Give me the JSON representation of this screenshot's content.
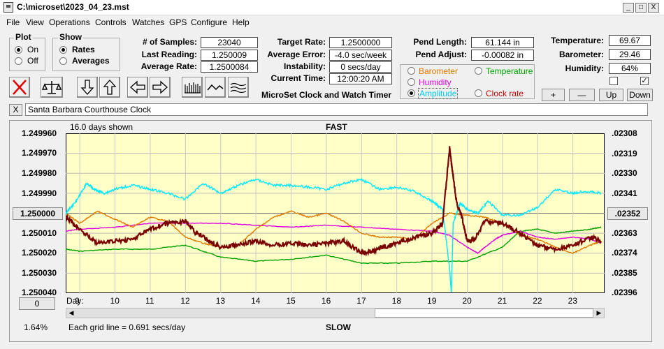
{
  "titlebar": {
    "title": "C:\\microset\\2023_04_23.mst",
    "minimize": "_",
    "maximize": "□",
    "close": "X"
  },
  "menu": [
    "File",
    "View",
    "Operations",
    "Controls",
    "Watches",
    "GPS",
    "Configure",
    "Help"
  ],
  "plot_group": {
    "title": "Plot",
    "on": "On",
    "off": "Off",
    "selected": "On"
  },
  "show_group": {
    "title": "Show",
    "rates": "Rates",
    "averages": "Averages",
    "selected": "Rates"
  },
  "stats": {
    "samples_label": "# of Samples:",
    "samples": "23040",
    "last_reading_label": "Last Reading:",
    "last_reading": "1.250009",
    "average_rate_label": "Average Rate:",
    "average_rate": "1.2500084",
    "target_rate_label": "Target Rate:",
    "target_rate": "1.2500000",
    "average_error_label": "Average Error:",
    "average_error": "-4.0 sec/week",
    "instability_label": "Instability:",
    "instability": "0 secs/day",
    "current_time_label": "Current Time:",
    "current_time": "12:00:20 AM",
    "pend_length_label": "Pend Length:",
    "pend_length": "61.144 in",
    "pend_adjust_label": "Pend Adjust:",
    "pend_adjust": "-0.00082 in",
    "temperature_label": "Temperature:",
    "temperature": "69.67",
    "barometer_label": "Barometer:",
    "barometer": "29.46",
    "humidity_label": "Humidity:",
    "humidity": "64%"
  },
  "app_caption": "MicroSet Clock and Watch Timer",
  "overlay_options": {
    "barometer": "Barometer",
    "temperature": "Temperature",
    "humidity": "Humidity",
    "amplitude": "Amplitude",
    "clock_rate": "Clock rate",
    "selected": "Amplitude",
    "colors": {
      "barometer": "#e07800",
      "temperature": "#00a000",
      "humidity": "#e000e0",
      "amplitude": "#00e8ff",
      "clock_rate": "#7a0000"
    }
  },
  "scale_buttons": {
    "plus": "+",
    "minus": "—",
    "up": "Up",
    "down": "Down"
  },
  "checkboxes": {
    "left_checked": false,
    "right_checked": true,
    "right_mark": "✓"
  },
  "clock_name": {
    "clear": "X",
    "value": "Santa Barbara Courthouse Clock"
  },
  "plot": {
    "days_shown": "16.0 days shown",
    "fast_label": "FAST",
    "slow_label": "SLOW",
    "center_button": "1.250000",
    "right_center_button": ".02352",
    "zero_button": "0",
    "percent": "1.64%",
    "grid_note": "Each grid line = 0.691 secs/day",
    "day_prefix": "Day:"
  },
  "chart_data": {
    "type": "line",
    "x_unit": "day",
    "xlim": [
      8.6,
      23.9
    ],
    "x_ticks": [
      9,
      10,
      11,
      12,
      13,
      14,
      15,
      16,
      17,
      18,
      19,
      20,
      21,
      22,
      23
    ],
    "y_ticks_left": [
      "1.249960",
      "1.249970",
      "1.249980",
      "1.249990",
      "1.250000",
      "1.250010",
      "1.250020",
      "1.250030",
      "1.250040"
    ],
    "ylim": [
      1.24996,
      1.25004
    ],
    "y_ticks_right": [
      ".02308",
      ".02319",
      ".02330",
      ".02341",
      ".02352",
      ".02363",
      ".02374",
      ".02385",
      ".02396"
    ],
    "grid": true,
    "series": [
      {
        "name": "Clock rate",
        "color": "#7a0000",
        "x": [
          8.6,
          9.0,
          9.5,
          10.0,
          10.5,
          11.0,
          11.5,
          12.0,
          12.3,
          12.7,
          13.0,
          13.5,
          14.0,
          14.5,
          15.0,
          15.5,
          16.0,
          16.5,
          17.0,
          17.3,
          17.6,
          18.0,
          18.5,
          19.0,
          19.3,
          19.5,
          19.55,
          19.7,
          19.85,
          20.0,
          20.2,
          20.5,
          21.0,
          21.5,
          22.0,
          22.5,
          23.0,
          23.5,
          23.8
        ],
        "y": [
          1.250002,
          1.250008,
          1.250015,
          1.250014,
          1.250013,
          1.250008,
          1.250005,
          1.250004,
          1.25001,
          1.250014,
          1.250017,
          1.250016,
          1.250014,
          1.250016,
          1.250015,
          1.250016,
          1.250015,
          1.250014,
          1.25002,
          1.250019,
          1.250017,
          1.250015,
          1.250012,
          1.25001,
          1.250005,
          1.249967,
          1.249975,
          1.249995,
          1.250002,
          1.250014,
          1.250013,
          1.250004,
          1.250005,
          1.25001,
          1.250016,
          1.250018,
          1.250016,
          1.250012,
          1.250014
        ]
      },
      {
        "name": "Amplitude",
        "color": "#00e8ff",
        "x": [
          8.6,
          8.9,
          9.2,
          9.4,
          9.7,
          10.0,
          10.5,
          11.0,
          11.5,
          12.0,
          12.5,
          13.0,
          13.5,
          14.0,
          14.5,
          15.0,
          15.5,
          16.0,
          16.5,
          17.0,
          17.5,
          18.0,
          18.5,
          19.0,
          19.3,
          19.5,
          19.55,
          19.6,
          19.8,
          20.0,
          20.3,
          20.6,
          21.0,
          21.5,
          22.0,
          22.5,
          23.0,
          23.3,
          23.8
        ],
        "y": [
          1.25,
          1.249994,
          1.249985,
          1.249988,
          1.24999,
          1.249988,
          1.249986,
          1.249988,
          1.24999,
          1.249993,
          1.249985,
          1.24999,
          1.249986,
          1.249983,
          1.249986,
          1.249986,
          1.249987,
          1.249988,
          1.249985,
          1.249983,
          1.249988,
          1.249987,
          1.249989,
          1.249994,
          1.249998,
          1.250028,
          1.25004,
          1.250005,
          1.249995,
          1.249998,
          1.25,
          1.249994,
          1.250001,
          1.250001,
          1.249997,
          1.249988,
          1.24999,
          1.249989,
          1.24999
        ]
      },
      {
        "name": "Barometer",
        "color": "#e07800",
        "x": [
          8.6,
          9.0,
          9.5,
          10.0,
          10.5,
          11.0,
          11.5,
          12.0,
          12.5,
          13.0,
          13.5,
          14.0,
          14.5,
          15.0,
          15.5,
          16.0,
          16.5,
          17.0,
          17.5,
          18.0,
          18.5,
          19.0,
          19.5,
          20.0,
          20.5,
          21.0,
          21.5,
          22.0,
          22.5,
          23.0,
          23.5,
          23.8
        ],
        "y": [
          1.25,
          1.250005,
          1.249999,
          1.250003,
          1.250007,
          1.250002,
          1.250004,
          1.250012,
          1.250015,
          1.250017,
          1.250016,
          1.250008,
          1.250002,
          1.249999,
          1.250002,
          1.25,
          1.250004,
          1.25001,
          1.250012,
          1.250012,
          1.250013,
          1.250005,
          1.25,
          1.250001,
          1.250002,
          1.250005,
          1.250011,
          1.250013,
          1.250017,
          1.25002,
          1.250016,
          1.250014
        ]
      },
      {
        "name": "Humidity",
        "color": "#e000e0",
        "x": [
          8.6,
          9.0,
          10.0,
          11.0,
          12.0,
          13.0,
          14.0,
          15.0,
          16.0,
          17.0,
          18.0,
          19.0,
          19.5,
          20.0,
          20.3,
          20.5,
          20.8,
          21.0,
          21.5,
          22.0,
          22.5,
          23.0,
          23.5,
          23.8
        ],
        "y": [
          1.250009,
          1.250008,
          1.250007,
          1.250005,
          1.250005,
          1.250005,
          1.250006,
          1.250007,
          1.250006,
          1.250007,
          1.250008,
          1.250009,
          1.250011,
          1.250017,
          1.25002,
          1.250017,
          1.250013,
          1.250011,
          1.250009,
          1.250012,
          1.250013,
          1.250012,
          1.250013,
          1.250015
        ]
      },
      {
        "name": "Temperature",
        "color": "#00a000",
        "x": [
          8.6,
          9.0,
          10.0,
          11.0,
          12.0,
          13.0,
          14.0,
          15.0,
          16.0,
          17.0,
          18.0,
          19.0,
          20.0,
          21.0,
          21.5,
          22.0,
          22.5,
          23.0,
          23.5,
          23.8
        ],
        "y": [
          1.250018,
          1.250019,
          1.250018,
          1.250018,
          1.250016,
          1.250022,
          1.250024,
          1.250023,
          1.250021,
          1.250025,
          1.250025,
          1.250024,
          1.250024,
          1.250017,
          1.250009,
          1.250008,
          1.25001,
          1.250009,
          1.250008,
          1.250007
        ]
      }
    ]
  }
}
